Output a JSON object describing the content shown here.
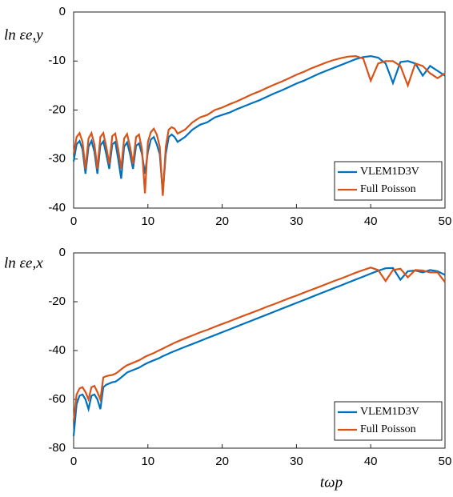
{
  "chart_data": [
    {
      "type": "line",
      "ylabel": "ln εe,y",
      "x": [
        0,
        0.4,
        0.8,
        1.2,
        1.6,
        2,
        2.4,
        2.8,
        3.2,
        3.6,
        4,
        4.4,
        4.8,
        5.2,
        5.6,
        6,
        6.4,
        6.8,
        7.2,
        7.6,
        8,
        8.4,
        8.8,
        9.2,
        9.6,
        10,
        10.4,
        10.8,
        11.2,
        11.6,
        12,
        12.4,
        12.8,
        13.2,
        13.6,
        14,
        15,
        16,
        17,
        18,
        19,
        20,
        21,
        22,
        23,
        24,
        25,
        26,
        27,
        28,
        29,
        30,
        31,
        32,
        33,
        34,
        35,
        36,
        37,
        38,
        39,
        40,
        41,
        42,
        43,
        44,
        45,
        46,
        47,
        48,
        49,
        50
      ],
      "series": [
        {
          "name": "VLEM1D3V",
          "color": "#0072bd",
          "values": [
            -30.5,
            -27,
            -26.3,
            -28,
            -33,
            -27.5,
            -26.3,
            -28.5,
            -33,
            -27.2,
            -26.4,
            -29,
            -32,
            -27,
            -26.5,
            -30,
            -34,
            -27.5,
            -26.6,
            -29,
            -32,
            -27.3,
            -26.8,
            -29,
            -33,
            -28.5,
            -26,
            -25.5,
            -27,
            -29,
            -37,
            -29,
            -25.5,
            -25,
            -25.5,
            -26.5,
            -25.5,
            -24,
            -23,
            -22.5,
            -21.5,
            -21,
            -20.5,
            -19.8,
            -19.2,
            -18.6,
            -18,
            -17.3,
            -16.6,
            -16,
            -15.3,
            -14.6,
            -14,
            -13.3,
            -12.6,
            -12,
            -11.4,
            -10.8,
            -10.2,
            -9.6,
            -9.2,
            -9,
            -9.3,
            -10.5,
            -14.5,
            -10.2,
            -10,
            -10.5,
            -13,
            -11,
            -12,
            -13
          ]
        },
        {
          "name": "Full Poisson",
          "color": "#d95319",
          "values": [
            -29,
            -25.5,
            -24.7,
            -26.5,
            -32,
            -25.8,
            -24.7,
            -27,
            -32,
            -25.5,
            -24.7,
            -27.5,
            -31,
            -25.3,
            -24.8,
            -28,
            -32,
            -25.8,
            -24.9,
            -27.5,
            -31,
            -25.5,
            -25,
            -28,
            -37,
            -26.5,
            -24.5,
            -23.8,
            -25,
            -27.5,
            -37.5,
            -27.5,
            -24,
            -23.5,
            -23.8,
            -24.8,
            -24,
            -22.5,
            -21.5,
            -21,
            -20,
            -19.5,
            -18.8,
            -18.2,
            -17.5,
            -16.8,
            -16.2,
            -15.5,
            -14.8,
            -14.2,
            -13.5,
            -12.8,
            -12.2,
            -11.5,
            -10.9,
            -10.3,
            -9.8,
            -9.4,
            -9.1,
            -9,
            -9.5,
            -14,
            -10.5,
            -10,
            -10,
            -11,
            -15,
            -10.5,
            -11,
            -12.5,
            -13.5,
            -12.5
          ]
        }
      ],
      "xlim": [
        0,
        50
      ],
      "xticks": [
        0,
        10,
        20,
        30,
        40,
        50
      ],
      "ylim": [
        -40,
        0
      ],
      "yticks": [
        -40,
        -30,
        -20,
        -10,
        0
      ],
      "legend": "lower right"
    },
    {
      "type": "line",
      "ylabel": "ln εe,x",
      "xlabel": "tωp",
      "x": [
        0,
        0.4,
        0.8,
        1.2,
        1.6,
        2,
        2.4,
        2.8,
        3.2,
        3.6,
        4,
        4.4,
        4.8,
        5.2,
        5.6,
        6,
        6.4,
        6.8,
        7.2,
        7.6,
        8,
        8.4,
        8.8,
        9.2,
        9.6,
        10,
        10.4,
        10.8,
        11.2,
        11.6,
        12,
        12.4,
        12.8,
        13.2,
        13.6,
        14,
        15,
        16,
        17,
        18,
        19,
        20,
        21,
        22,
        23,
        24,
        25,
        26,
        27,
        28,
        29,
        30,
        31,
        32,
        33,
        34,
        35,
        36,
        37,
        38,
        39,
        40,
        41,
        42,
        43,
        44,
        45,
        46,
        47,
        48,
        49,
        50
      ],
      "series": [
        {
          "name": "VLEM1D3V",
          "color": "#0072bd",
          "values": [
            -75,
            -62,
            -58.5,
            -58,
            -60,
            -64,
            -58.5,
            -58,
            -60,
            -64,
            -55,
            -54,
            -53.5,
            -53,
            -52.8,
            -52,
            -51,
            -50,
            -49,
            -48.5,
            -48,
            -47.5,
            -47,
            -46.3,
            -45.6,
            -45,
            -44.5,
            -44,
            -43.5,
            -43,
            -42.3,
            -41.8,
            -41.2,
            -40.7,
            -40.2,
            -39.7,
            -38.5,
            -37.3,
            -36.1,
            -34.9,
            -33.7,
            -32.5,
            -31.3,
            -30.1,
            -28.9,
            -27.7,
            -26.5,
            -25.3,
            -24.1,
            -22.9,
            -21.7,
            -20.5,
            -19.3,
            -18.1,
            -16.9,
            -15.7,
            -14.5,
            -13.3,
            -12.1,
            -10.9,
            -9.7,
            -8.5,
            -7.3,
            -6.3,
            -6.2,
            -11,
            -7.5,
            -7.2,
            -8,
            -7,
            -7.5,
            -9
          ]
        },
        {
          "name": "Full Poisson",
          "color": "#d95319",
          "values": [
            -69,
            -58,
            -55.5,
            -55,
            -57,
            -60,
            -55,
            -54.5,
            -57,
            -60,
            -51,
            -50.5,
            -50.2,
            -50,
            -49.5,
            -48.7,
            -47.7,
            -46.8,
            -46,
            -45.5,
            -45,
            -44.5,
            -44,
            -43.3,
            -42.6,
            -42,
            -41.5,
            -41,
            -40.4,
            -39.8,
            -39.2,
            -38.6,
            -38,
            -37.4,
            -36.8,
            -36.3,
            -35,
            -33.8,
            -32.6,
            -31.5,
            -30.3,
            -29.1,
            -28,
            -26.8,
            -25.6,
            -24.5,
            -23.3,
            -22.1,
            -21,
            -19.8,
            -18.6,
            -17.5,
            -16.3,
            -15.1,
            -14,
            -12.8,
            -11.6,
            -10.5,
            -9.3,
            -8.1,
            -7,
            -6,
            -7,
            -11.5,
            -7,
            -6.5,
            -10,
            -7,
            -7.2,
            -8,
            -8,
            -12
          ]
        }
      ],
      "xlim": [
        0,
        50
      ],
      "xticks": [
        0,
        10,
        20,
        30,
        40,
        50
      ],
      "ylim": [
        -80,
        0
      ],
      "yticks": [
        -80,
        -60,
        -40,
        -20,
        0
      ],
      "legend": "lower right"
    }
  ]
}
